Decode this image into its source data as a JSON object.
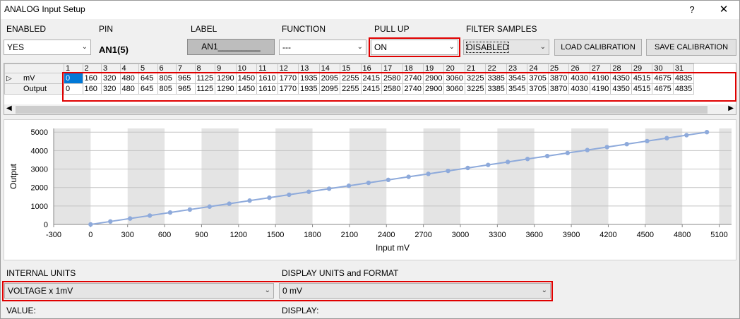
{
  "window": {
    "title": "ANALOG Input Setup",
    "help_glyph": "?",
    "close_glyph": "✕"
  },
  "headers": {
    "enabled": "ENABLED",
    "pin": "PIN",
    "label": "LABEL",
    "function": "FUNCTION",
    "pull_up": "PULL UP",
    "filter_samples": "FILTER SAMPLES"
  },
  "values": {
    "enabled": "YES",
    "pin": "AN1(5)",
    "label": "AN1_________",
    "function": "---",
    "pull_up": "ON",
    "filter_samples": "DISABLED"
  },
  "buttons": {
    "load_calibration": "LOAD CALIBRATION",
    "save_calibration": "SAVE CALIBRATION"
  },
  "calibration": {
    "columns": [
      "1",
      "2",
      "3",
      "4",
      "5",
      "6",
      "7",
      "8",
      "9",
      "10",
      "11",
      "12",
      "13",
      "14",
      "15",
      "16",
      "17",
      "18",
      "19",
      "20",
      "21",
      "22",
      "23",
      "24",
      "25",
      "26",
      "27",
      "28",
      "29",
      "30",
      "31"
    ],
    "row_labels": [
      "mV",
      "Output"
    ],
    "mv": [
      "0",
      "160",
      "320",
      "480",
      "645",
      "805",
      "965",
      "1125",
      "1290",
      "1450",
      "1610",
      "1770",
      "1935",
      "2095",
      "2255",
      "2415",
      "2580",
      "2740",
      "2900",
      "3060",
      "3225",
      "3385",
      "3545",
      "3705",
      "3870",
      "4030",
      "4190",
      "4350",
      "4515",
      "4675",
      "4835"
    ],
    "output": [
      "0",
      "160",
      "320",
      "480",
      "645",
      "805",
      "965",
      "1125",
      "1290",
      "1450",
      "1610",
      "1770",
      "1935",
      "2095",
      "2255",
      "2415",
      "2580",
      "2740",
      "2900",
      "3060",
      "3225",
      "3385",
      "3545",
      "3705",
      "3870",
      "4030",
      "4190",
      "4350",
      "4515",
      "4675",
      "4835"
    ],
    "row_marker": "▷"
  },
  "chart_data": {
    "type": "line",
    "xlabel": "Input mV",
    "ylabel": "Output",
    "xlim": [
      -300,
      5200
    ],
    "ylim": [
      0,
      5200
    ],
    "x_ticks": [
      "-300",
      "0",
      "300",
      "600",
      "900",
      "1200",
      "1500",
      "1800",
      "2100",
      "2400",
      "2700",
      "3000",
      "3300",
      "3600",
      "3900",
      "4200",
      "4500",
      "4800",
      "5100"
    ],
    "y_ticks": [
      "0",
      "1000",
      "2000",
      "3000",
      "4000",
      "5000"
    ],
    "series": [
      {
        "color": "#8eaadb",
        "x": [
          0,
          160,
          320,
          480,
          645,
          805,
          965,
          1125,
          1290,
          1450,
          1610,
          1770,
          1935,
          2095,
          2255,
          2415,
          2580,
          2740,
          2900,
          3060,
          3225,
          3385,
          3545,
          3705,
          3870,
          4030,
          4190,
          4350,
          4515,
          4675,
          4835,
          5000
        ],
        "y": [
          0,
          160,
          320,
          480,
          645,
          805,
          965,
          1125,
          1290,
          1450,
          1610,
          1770,
          1935,
          2095,
          2255,
          2415,
          2580,
          2740,
          2900,
          3060,
          3225,
          3385,
          3545,
          3705,
          3870,
          4030,
          4190,
          4350,
          4515,
          4675,
          4835,
          5000
        ]
      }
    ],
    "grid": "alternating vertical bands"
  },
  "bottom": {
    "internal_units_label": "INTERNAL UNITS",
    "internal_units_value": "VOLTAGE x 1mV",
    "display_units_label": "DISPLAY UNITS and FORMAT",
    "display_units_value": "0 mV",
    "value_label": "VALUE:",
    "display_label": "DISPLAY:"
  },
  "colors": {
    "highlight_red": "#e00000",
    "selection_blue": "#0078d7",
    "line_blue": "#8eaadb"
  }
}
